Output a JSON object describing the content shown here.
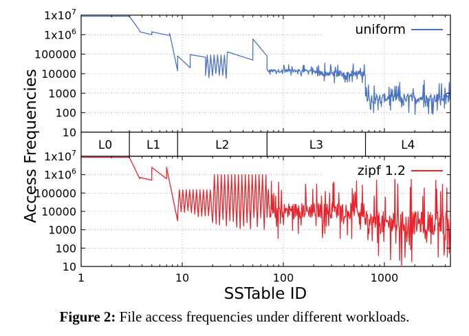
{
  "caption": {
    "label": "Figure 2:",
    "text": "File access frequencies under different workloads."
  },
  "chart_data": {
    "type": "line",
    "ylabel": "Access Frequencies",
    "xlabel": "SSTable ID",
    "xscale": "log",
    "xlim": [
      1,
      4500
    ],
    "x_ticks": [
      "1",
      "10",
      "100",
      "1000"
    ],
    "y_scale": "log",
    "ylim": [
      10,
      10000000
    ],
    "y_ticks": [
      "10",
      "100",
      "1000",
      "10000",
      "100000",
      "1x10^6",
      "1x10^7"
    ],
    "grid": true,
    "levels": [
      {
        "name": "L0",
        "start": 1,
        "end": 3
      },
      {
        "name": "L1",
        "start": 3,
        "end": 9
      },
      {
        "name": "L2",
        "start": 9,
        "end": 69
      },
      {
        "name": "L3",
        "start": 69,
        "end": 650
      },
      {
        "name": "L4",
        "start": 650,
        "end": 4500
      }
    ],
    "panels": [
      {
        "name": "uniform",
        "legend": "uniform",
        "color": "#4a72c4",
        "series": {
          "segments": [
            {
              "from": 1,
              "to": 3,
              "lo": 8800000,
              "hi": 8800000,
              "style": "flat"
            },
            {
              "from": 3,
              "to": 3.8,
              "lo": 1600000,
              "hi": 8800000,
              "style": "flat"
            },
            {
              "from": 3.8,
              "to": 5,
              "lo": 1000000,
              "hi": 1400000,
              "style": "flat"
            },
            {
              "from": 5,
              "to": 7.5,
              "lo": 900000,
              "hi": 1400000,
              "style": "flat"
            },
            {
              "from": 7.5,
              "to": 9,
              "lo": 14000,
              "hi": 1200000,
              "style": "flat"
            },
            {
              "from": 9,
              "to": 12,
              "lo": 20000,
              "hi": 80000,
              "style": "flat"
            },
            {
              "from": 12,
              "to": 17,
              "lo": 70000,
              "hi": 95000,
              "style": "flat"
            },
            {
              "from": 17,
              "to": 28,
              "lo": 5000,
              "hi": 90000,
              "style": "spiky"
            },
            {
              "from": 28,
              "to": 50,
              "lo": 50000,
              "hi": 130000,
              "style": "flat"
            },
            {
              "from": 50,
              "to": 69,
              "lo": 80000,
              "hi": 600000,
              "style": "flat"
            },
            {
              "from": 69,
              "to": 200,
              "lo": 7000,
              "hi": 30000,
              "style": "noise"
            },
            {
              "from": 200,
              "to": 650,
              "lo": 3000,
              "hi": 40000,
              "style": "noise"
            },
            {
              "from": 650,
              "to": 4500,
              "lo": 80,
              "hi": 5000,
              "style": "noise"
            }
          ]
        }
      },
      {
        "name": "zipf",
        "legend": "zipf 1.2",
        "color": "#e8232b",
        "series": {
          "segments": [
            {
              "from": 1,
              "to": 3,
              "lo": 8800000,
              "hi": 8800000,
              "style": "flat"
            },
            {
              "from": 3,
              "to": 3.8,
              "lo": 600000,
              "hi": 8800000,
              "style": "flat"
            },
            {
              "from": 3.8,
              "to": 5,
              "lo": 500000,
              "hi": 700000,
              "style": "flat"
            },
            {
              "from": 5,
              "to": 7,
              "lo": 600000,
              "hi": 2500000,
              "style": "flat"
            },
            {
              "from": 7,
              "to": 9,
              "lo": 3000,
              "hi": 2500000,
              "style": "flat"
            },
            {
              "from": 9,
              "to": 20,
              "lo": 5000,
              "hi": 150000,
              "style": "spiky"
            },
            {
              "from": 20,
              "to": 69,
              "lo": 1000,
              "hi": 1000000,
              "style": "spiky"
            },
            {
              "from": 69,
              "to": 650,
              "lo": 300,
              "hi": 600000,
              "style": "noise"
            },
            {
              "from": 650,
              "to": 4500,
              "lo": 10,
              "hi": 1000000,
              "style": "noise"
            }
          ]
        }
      }
    ]
  }
}
